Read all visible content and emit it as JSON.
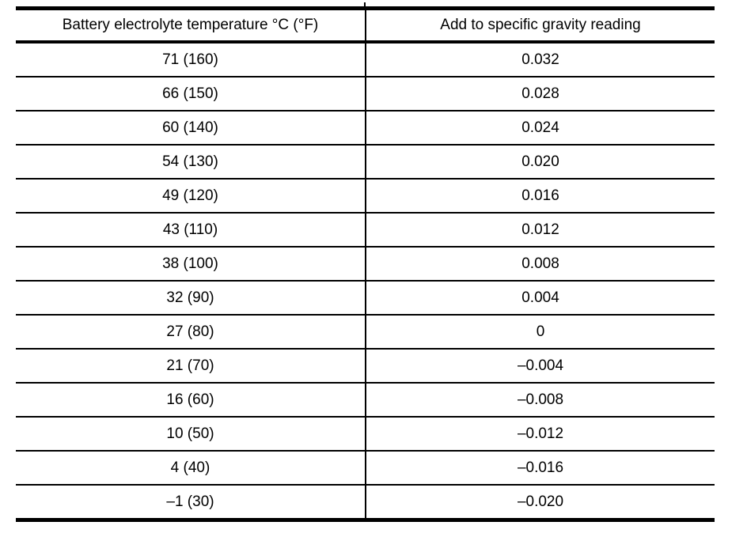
{
  "page": {
    "background_color": "#ffffff",
    "text_color": "#000000",
    "rule_color": "#000000"
  },
  "table": {
    "columns": [
      {
        "label": "Battery electrolyte temperature °C (°F)"
      },
      {
        "label": "Add to specific gravity reading"
      }
    ],
    "rows": [
      {
        "temperature": "71 (160)",
        "correction": "0.032"
      },
      {
        "temperature": "66 (150)",
        "correction": "0.028"
      },
      {
        "temperature": "60 (140)",
        "correction": "0.024"
      },
      {
        "temperature": "54 (130)",
        "correction": "0.020"
      },
      {
        "temperature": "49 (120)",
        "correction": "0.016"
      },
      {
        "temperature": "43 (110)",
        "correction": "0.012"
      },
      {
        "temperature": "38 (100)",
        "correction": "0.008"
      },
      {
        "temperature": "32 (90)",
        "correction": "0.004"
      },
      {
        "temperature": "27 (80)",
        "correction": "0"
      },
      {
        "temperature": "21 (70)",
        "correction": "–0.004"
      },
      {
        "temperature": "16 (60)",
        "correction": "–0.008"
      },
      {
        "temperature": "10 (50)",
        "correction": "–0.012"
      },
      {
        "temperature": "4 (40)",
        "correction": "–0.016"
      },
      {
        "temperature": "–1 (30)",
        "correction": "–0.020"
      }
    ]
  },
  "chart_data": {
    "type": "table",
    "columns": [
      "Battery electrolyte temperature °C (°F)",
      "Add to specific gravity reading"
    ],
    "temperature_celsius": [
      71,
      66,
      60,
      54,
      49,
      43,
      38,
      32,
      27,
      21,
      16,
      10,
      4,
      -1
    ],
    "temperature_fahrenheit": [
      160,
      150,
      140,
      130,
      120,
      110,
      100,
      90,
      80,
      70,
      60,
      50,
      40,
      30
    ],
    "gravity_correction": [
      0.032,
      0.028,
      0.024,
      0.02,
      0.016,
      0.012,
      0.008,
      0.004,
      0,
      -0.004,
      -0.008,
      -0.012,
      -0.016,
      -0.02
    ]
  }
}
